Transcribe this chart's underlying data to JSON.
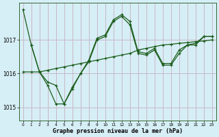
{
  "background_color": "#d6eef5",
  "grid_color": "#c8b8c8",
  "line_color": "#1a5c1a",
  "xlabel": "Graphe pression niveau de la mer (hPa)",
  "ylim": [
    1014.6,
    1018.1
  ],
  "xlim": [
    -0.5,
    23.5
  ],
  "yticks": [
    1015,
    1016,
    1017
  ],
  "xticks": [
    0,
    1,
    2,
    3,
    4,
    5,
    6,
    7,
    8,
    9,
    10,
    11,
    12,
    13,
    14,
    15,
    16,
    17,
    18,
    19,
    20,
    21,
    22,
    23
  ],
  "series1_x": [
    0,
    1,
    2,
    3,
    4,
    5,
    6,
    7,
    8,
    9,
    10,
    11,
    12,
    13,
    14,
    15,
    16,
    17,
    18,
    19,
    20,
    21,
    22,
    23
  ],
  "series1_y": [
    1017.9,
    1016.85,
    1016.05,
    1015.65,
    1015.1,
    1015.1,
    1015.6,
    1016.0,
    1016.4,
    1017.05,
    1017.15,
    1017.6,
    1017.75,
    1017.55,
    1016.65,
    1016.6,
    1016.75,
    1016.3,
    1016.3,
    1016.7,
    1016.85,
    1016.9,
    1017.1,
    1017.1
  ],
  "series2_x": [
    0,
    1,
    2,
    3,
    4,
    5,
    6,
    7,
    8,
    9,
    10,
    11,
    12,
    13,
    14,
    15,
    16,
    17,
    18,
    19,
    20,
    21,
    22,
    23
  ],
  "series2_y": [
    1016.05,
    1016.05,
    1016.05,
    1016.1,
    1016.15,
    1016.2,
    1016.25,
    1016.3,
    1016.35,
    1016.4,
    1016.45,
    1016.5,
    1016.55,
    1016.6,
    1016.7,
    1016.75,
    1016.8,
    1016.85,
    1016.87,
    1016.9,
    1016.92,
    1016.95,
    1016.97,
    1017.0
  ],
  "series3_x": [
    1,
    2,
    3,
    4,
    5,
    6,
    7,
    8,
    9,
    10,
    11,
    12,
    13,
    14,
    15,
    16,
    17,
    18,
    19,
    20,
    21,
    22,
    23
  ],
  "series3_y": [
    1016.85,
    1016.05,
    1015.75,
    1015.65,
    1015.1,
    1015.55,
    1016.0,
    1016.35,
    1017.0,
    1017.1,
    1017.55,
    1017.7,
    1017.45,
    1016.6,
    1016.55,
    1016.7,
    1016.25,
    1016.25,
    1016.6,
    1016.85,
    1016.85,
    1017.1,
    1017.1
  ]
}
